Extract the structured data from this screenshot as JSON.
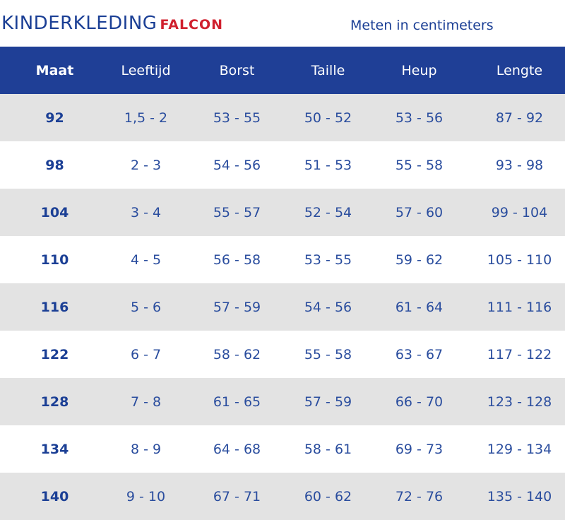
{
  "header": {
    "brand_main": "KINDERKLEDING",
    "brand_sub": "FALCON",
    "units_note": "Meten in centimeters"
  },
  "colors": {
    "header_blue": "#1f3f96",
    "text_blue": "#1b3f95",
    "brand_red": "#d0202e",
    "row_gray": "#e3e3e3"
  },
  "table": {
    "columns": [
      "Maat",
      "Leeftijd",
      "Borst",
      "Taille",
      "Heup",
      "Lengte"
    ],
    "rows": [
      [
        "92",
        "1,5 - 2",
        "53 - 55",
        "50 - 52",
        "53 - 56",
        "87 - 92"
      ],
      [
        "98",
        "2 - 3",
        "54 - 56",
        "51 - 53",
        "55 - 58",
        "93 - 98"
      ],
      [
        "104",
        "3 - 4",
        "55 - 57",
        "52 - 54",
        "57 - 60",
        "99 - 104"
      ],
      [
        "110",
        "4 - 5",
        "56 - 58",
        "53 - 55",
        "59 - 62",
        "105 - 110"
      ],
      [
        "116",
        "5 - 6",
        "57 - 59",
        "54 - 56",
        "61 - 64",
        "111 - 116"
      ],
      [
        "122",
        "6 - 7",
        "58 - 62",
        "55 - 58",
        "63 - 67",
        "117 - 122"
      ],
      [
        "128",
        "7 - 8",
        "61 - 65",
        "57 - 59",
        "66 - 70",
        "123 - 128"
      ],
      [
        "134",
        "8 - 9",
        "64 - 68",
        "58 - 61",
        "69 - 73",
        "129 - 134"
      ],
      [
        "140",
        "9 - 10",
        "67 - 71",
        "60 - 62",
        "72 - 76",
        "135 - 140"
      ]
    ]
  }
}
